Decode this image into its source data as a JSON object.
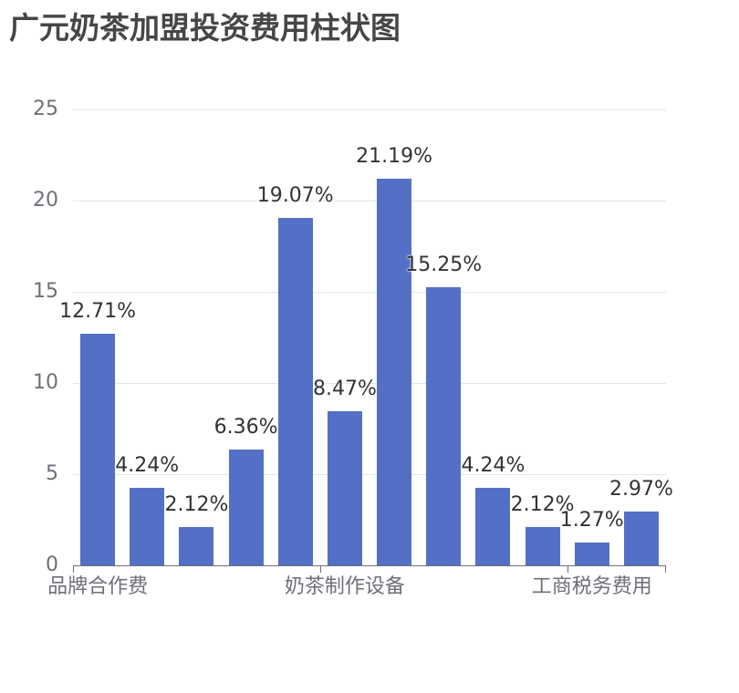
{
  "title": "广元奶茶加盟投资费用柱状图",
  "chart_data": {
    "type": "bar",
    "title": "广元奶茶加盟投资费用柱状图",
    "xlabel": "",
    "ylabel": "",
    "ylim": [
      0,
      25
    ],
    "yticks": [
      0,
      5,
      10,
      15,
      20,
      25
    ],
    "grid": true,
    "legend": null,
    "categories": [
      "品牌合作费",
      "",
      "",
      "",
      "",
      "奶茶制作设备",
      "",
      "",
      "",
      "",
      "工商税务费用",
      ""
    ],
    "visible_category_labels": [
      {
        "index": 0,
        "label": "品牌合作费"
      },
      {
        "index": 5,
        "label": "奶茶制作设备"
      },
      {
        "index": 10,
        "label": "工商税务费用"
      }
    ],
    "values": [
      12.71,
      4.24,
      2.12,
      6.36,
      19.07,
      8.47,
      21.19,
      15.25,
      4.24,
      2.12,
      1.27,
      2.97
    ],
    "data_labels": [
      "12.71%",
      "4.24%",
      "2.12%",
      "6.36%",
      "19.07%",
      "8.47%",
      "21.19%",
      "15.25%",
      "4.24%",
      "2.12%",
      "1.27%",
      "2.97%"
    ],
    "colors": {
      "bar": "#5470C6",
      "grid": "#E0E6F1",
      "axis": "#6E7079",
      "label": "#333333"
    }
  }
}
